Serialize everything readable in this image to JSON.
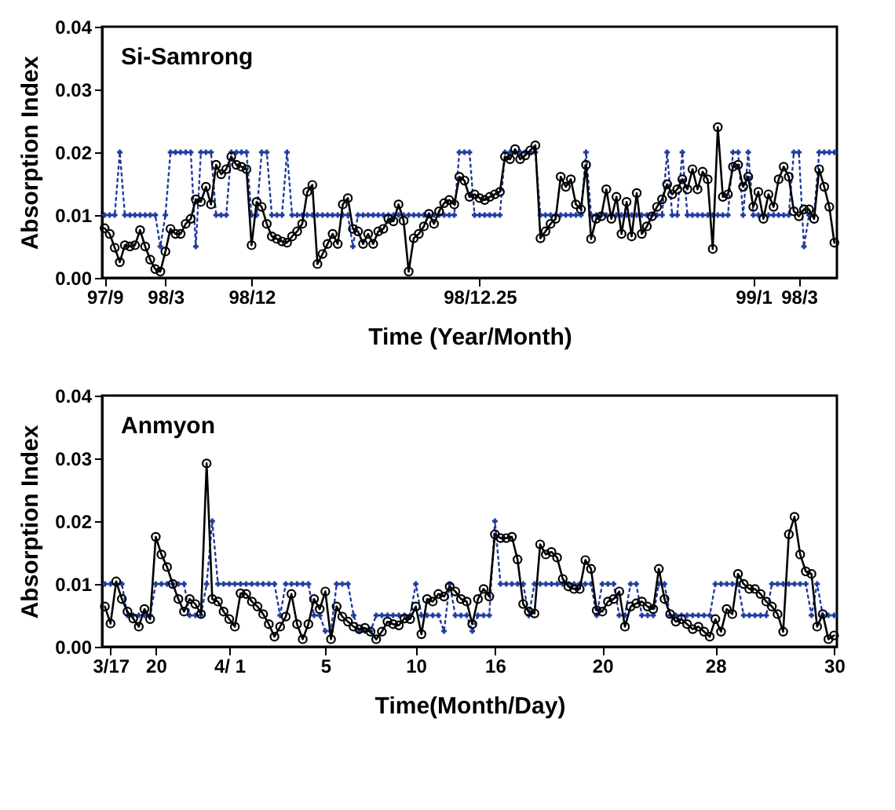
{
  "chart_data": [
    {
      "type": "line",
      "title": "Si-Samrong",
      "xlabel": "Time (Year/Month)",
      "ylabel": "Absorption Index",
      "categories": [
        "97/9",
        null,
        null,
        null,
        null,
        null,
        null,
        null,
        null,
        null,
        null,
        null,
        "98/3",
        null,
        null,
        null,
        null,
        null,
        null,
        null,
        null,
        null,
        null,
        null,
        null,
        null,
        null,
        null,
        null,
        "98/12",
        null,
        null,
        null,
        null,
        null,
        null,
        null,
        null,
        null,
        null,
        null,
        null,
        null,
        null,
        null,
        null,
        null,
        null,
        null,
        null,
        null,
        null,
        null,
        null,
        null,
        null,
        null,
        null,
        null,
        null,
        null,
        null,
        null,
        null,
        null,
        null,
        null,
        null,
        null,
        null,
        null,
        null,
        null,
        null,
        "98/12.25",
        null,
        null,
        null,
        null,
        null,
        null,
        null,
        null,
        null,
        null,
        null,
        null,
        null,
        null,
        null,
        null,
        null,
        null,
        null,
        null,
        null,
        null,
        null,
        null,
        null,
        null,
        null,
        null,
        null,
        null,
        null,
        null,
        null,
        null,
        null,
        null,
        null,
        null,
        null,
        null,
        null,
        null,
        null,
        null,
        null,
        null,
        null,
        null,
        null,
        null,
        null,
        null,
        null,
        "99/1",
        null,
        null,
        null,
        null,
        null,
        null,
        null,
        null,
        "98/3",
        null,
        null,
        null,
        null,
        null,
        null,
        null
      ],
      "ylim": [
        0,
        0.04
      ],
      "yticks": [
        {
          "value": 0,
          "label": "0.00"
        },
        {
          "value": 0.01,
          "label": "0.01"
        },
        {
          "value": 0.02,
          "label": "0.02"
        },
        {
          "value": 0.03,
          "label": "0.03"
        },
        {
          "value": 0.04,
          "label": "0.04"
        }
      ],
      "series": [
        {
          "color": "#1f3a9e",
          "marker": "cross",
          "line_style": "dotted",
          "values": [
            0.01,
            0.01,
            0.01,
            0.02,
            0.01,
            0.01,
            0.01,
            0.01,
            0.01,
            0.01,
            0.01,
            0.005,
            0.01,
            0.02,
            0.02,
            0.02,
            0.02,
            0.02,
            0.005,
            0.02,
            0.02,
            0.02,
            0.01,
            0.01,
            0.01,
            0.02,
            0.02,
            0.02,
            0.02,
            0.01,
            0.01,
            0.02,
            0.02,
            0.01,
            0.01,
            0.01,
            0.02,
            0.01,
            0.01,
            0.01,
            0.01,
            0.01,
            0.01,
            0.01,
            0.01,
            0.01,
            0.01,
            0.01,
            0.01,
            0.005,
            0.01,
            0.01,
            0.01,
            0.01,
            0.01,
            0.01,
            0.01,
            0.01,
            0.01,
            0.01,
            0.01,
            0.01,
            0.01,
            0.01,
            0.01,
            0.01,
            0.01,
            0.01,
            0.01,
            0.01,
            0.02,
            0.02,
            0.02,
            0.01,
            0.01,
            0.01,
            0.01,
            0.01,
            0.01,
            0.02,
            0.02,
            0.02,
            0.02,
            0.02,
            0.02,
            0.02,
            0.01,
            0.01,
            0.01,
            0.01,
            0.01,
            0.01,
            0.01,
            0.01,
            0.01,
            0.02,
            0.01,
            0.01,
            0.01,
            0.01,
            0.01,
            0.01,
            0.01,
            0.01,
            0.01,
            0.01,
            0.01,
            0.01,
            0.01,
            0.01,
            0.01,
            0.02,
            0.01,
            0.01,
            0.02,
            0.01,
            0.01,
            0.01,
            0.01,
            0.01,
            0.01,
            0.01,
            0.01,
            0.01,
            0.02,
            0.02,
            0.01,
            0.02,
            0.01,
            0.01,
            0.01,
            0.01,
            0.01,
            0.01,
            0.01,
            0.01,
            0.02,
            0.02,
            0.005,
            0.01,
            0.01,
            0.02,
            0.02,
            0.02,
            0.02
          ]
        },
        {
          "color": "#000000",
          "marker": "circle",
          "line_style": "solid",
          "values": [
            0.0079,
            0.007,
            0.0048,
            0.0025,
            0.0052,
            0.005,
            0.0052,
            0.0076,
            0.005,
            0.0029,
            0.0014,
            0.001,
            0.0042,
            0.0078,
            0.007,
            0.007,
            0.0086,
            0.0094,
            0.0125,
            0.0121,
            0.0145,
            0.0117,
            0.018,
            0.0165,
            0.0173,
            0.0193,
            0.018,
            0.0177,
            0.0173,
            0.0052,
            0.0121,
            0.0113,
            0.0086,
            0.0066,
            0.0062,
            0.0058,
            0.0056,
            0.0066,
            0.0074,
            0.0086,
            0.0137,
            0.0148,
            0.0022,
            0.0038,
            0.0054,
            0.007,
            0.0054,
            0.0117,
            0.0127,
            0.0078,
            0.0074,
            0.0054,
            0.007,
            0.0054,
            0.0074,
            0.0078,
            0.0094,
            0.009,
            0.0117,
            0.0091,
            0.001,
            0.0063,
            0.007,
            0.0082,
            0.0102,
            0.0086,
            0.0106,
            0.0119,
            0.0124,
            0.0117,
            0.0161,
            0.0155,
            0.0129,
            0.0133,
            0.0127,
            0.0124,
            0.0129,
            0.0133,
            0.0137,
            0.0193,
            0.0189,
            0.0205,
            0.0189,
            0.0195,
            0.0203,
            0.0211,
            0.0063,
            0.0074,
            0.0086,
            0.0094,
            0.0161,
            0.0145,
            0.0157,
            0.0117,
            0.0109,
            0.018,
            0.0062,
            0.0094,
            0.0098,
            0.0141,
            0.0094,
            0.0129,
            0.007,
            0.0121,
            0.0066,
            0.0135,
            0.007,
            0.0082,
            0.0098,
            0.0113,
            0.0125,
            0.0149,
            0.0133,
            0.0141,
            0.0157,
            0.0141,
            0.0173,
            0.0141,
            0.0169,
            0.0157,
            0.0046,
            0.024,
            0.0129,
            0.0133,
            0.0177,
            0.018,
            0.0145,
            0.0161,
            0.0113,
            0.0137,
            0.0094,
            0.0133,
            0.0113,
            0.0157,
            0.0177,
            0.0161,
            0.0106,
            0.0098,
            0.0109,
            0.0109,
            0.0094,
            0.0173,
            0.0145,
            0.0113,
            0.0056
          ]
        }
      ]
    },
    {
      "type": "line",
      "title": "Anmyon",
      "xlabel": "Time(Month/Day)",
      "ylabel": "Absorption Index",
      "categories": [
        null,
        "3/17",
        null,
        null,
        null,
        null,
        null,
        null,
        null,
        "20",
        null,
        null,
        null,
        null,
        null,
        null,
        null,
        null,
        null,
        null,
        null,
        null,
        "4/ 1",
        null,
        null,
        null,
        null,
        null,
        null,
        null,
        null,
        null,
        null,
        null,
        null,
        null,
        null,
        null,
        null,
        "5",
        null,
        null,
        null,
        null,
        null,
        null,
        null,
        null,
        null,
        null,
        null,
        null,
        null,
        null,
        null,
        "10",
        null,
        null,
        null,
        null,
        null,
        null,
        null,
        null,
        null,
        null,
        null,
        null,
        null,
        "16",
        null,
        null,
        null,
        null,
        null,
        null,
        null,
        null,
        null,
        null,
        null,
        null,
        null,
        null,
        null,
        null,
        null,
        null,
        "20",
        null,
        null,
        null,
        null,
        null,
        null,
        null,
        null,
        null,
        null,
        null,
        null,
        null,
        null,
        null,
        null,
        null,
        null,
        null,
        "28",
        null,
        null,
        null,
        null,
        null,
        null,
        null,
        null,
        null,
        null,
        null,
        null,
        null,
        null,
        null,
        null,
        null,
        null,
        null,
        null,
        "30"
      ],
      "ylim": [
        0,
        0.04
      ],
      "yticks": [
        {
          "value": 0,
          "label": "0.00"
        },
        {
          "value": 0.01,
          "label": "0.01"
        },
        {
          "value": 0.02,
          "label": "0.02"
        },
        {
          "value": 0.03,
          "label": "0.03"
        },
        {
          "value": 0.04,
          "label": "0.04"
        }
      ],
      "series": [
        {
          "color": "#1f3a9e",
          "marker": "cross",
          "line_style": "dotted",
          "values": [
            0.01,
            0.01,
            0.01,
            0.01,
            0.005,
            0.005,
            0.005,
            0.005,
            0.005,
            0.01,
            0.01,
            0.01,
            0.01,
            0.01,
            0.01,
            0.005,
            0.005,
            0.005,
            0.01,
            0.02,
            0.01,
            0.01,
            0.01,
            0.01,
            0.01,
            0.01,
            0.01,
            0.01,
            0.01,
            0.01,
            0.01,
            0.005,
            0.01,
            0.01,
            0.01,
            0.01,
            0.01,
            0.005,
            0.005,
            0.0025,
            0.0025,
            0.01,
            0.01,
            0.01,
            0.005,
            0.0025,
            0.0025,
            0.0025,
            0.005,
            0.005,
            0.005,
            0.005,
            0.005,
            0.005,
            0.005,
            0.01,
            0.005,
            0.005,
            0.005,
            0.005,
            0.0025,
            0.01,
            0.005,
            0.005,
            0.005,
            0.0025,
            0.005,
            0.005,
            0.005,
            0.02,
            0.01,
            0.01,
            0.01,
            0.01,
            0.01,
            0.005,
            0.01,
            0.01,
            0.01,
            0.01,
            0.01,
            0.01,
            0.01,
            0.01,
            0.01,
            0.01,
            0.01,
            0.005,
            0.01,
            0.01,
            0.01,
            0.005,
            0.005,
            0.01,
            0.01,
            0.005,
            0.005,
            0.005,
            0.01,
            0.01,
            0.005,
            0.005,
            0.005,
            0.005,
            0.005,
            0.005,
            0.005,
            0.005,
            0.01,
            0.01,
            0.01,
            0.01,
            0.01,
            0.005,
            0.005,
            0.005,
            0.005,
            0.005,
            0.01,
            0.01,
            0.01,
            0.01,
            0.01,
            0.01,
            0.01,
            0.005,
            0.01,
            0.005,
            0.005,
            0.005
          ]
        },
        {
          "color": "#000000",
          "marker": "circle",
          "line_style": "solid",
          "values": [
            0.0064,
            0.0037,
            0.0104,
            0.0076,
            0.0056,
            0.0045,
            0.0032,
            0.006,
            0.0044,
            0.0175,
            0.0147,
            0.0127,
            0.01,
            0.0076,
            0.0056,
            0.0076,
            0.0068,
            0.0052,
            0.0292,
            0.0076,
            0.0072,
            0.0056,
            0.0044,
            0.0032,
            0.0085,
            0.0084,
            0.0072,
            0.0064,
            0.0052,
            0.0036,
            0.0016,
            0.0032,
            0.0048,
            0.0084,
            0.0036,
            0.0012,
            0.0036,
            0.0076,
            0.006,
            0.0088,
            0.0012,
            0.0064,
            0.0048,
            0.004,
            0.0032,
            0.0028,
            0.003,
            0.0024,
            0.0012,
            0.0024,
            0.004,
            0.0036,
            0.0034,
            0.0045,
            0.0044,
            0.0064,
            0.002,
            0.0076,
            0.0072,
            0.0084,
            0.008,
            0.0096,
            0.0088,
            0.0076,
            0.0072,
            0.0036,
            0.0076,
            0.0092,
            0.008,
            0.0179,
            0.0173,
            0.0173,
            0.0175,
            0.0139,
            0.0068,
            0.0056,
            0.0053,
            0.0163,
            0.0147,
            0.0151,
            0.0142,
            0.0108,
            0.0096,
            0.0092,
            0.0092,
            0.0138,
            0.0124,
            0.0058,
            0.0056,
            0.0072,
            0.0076,
            0.0088,
            0.0032,
            0.0064,
            0.0069,
            0.0072,
            0.0064,
            0.006,
            0.0124,
            0.0076,
            0.0052,
            0.004,
            0.0044,
            0.0036,
            0.0028,
            0.0032,
            0.0024,
            0.0016,
            0.0044,
            0.0024,
            0.006,
            0.0052,
            0.0116,
            0.01,
            0.0092,
            0.0092,
            0.0084,
            0.0072,
            0.0064,
            0.0052,
            0.0024,
            0.0179,
            0.0207,
            0.0147,
            0.012,
            0.0116,
            0.0032,
            0.0052,
            0.0012,
            0.0018
          ]
        }
      ]
    }
  ]
}
